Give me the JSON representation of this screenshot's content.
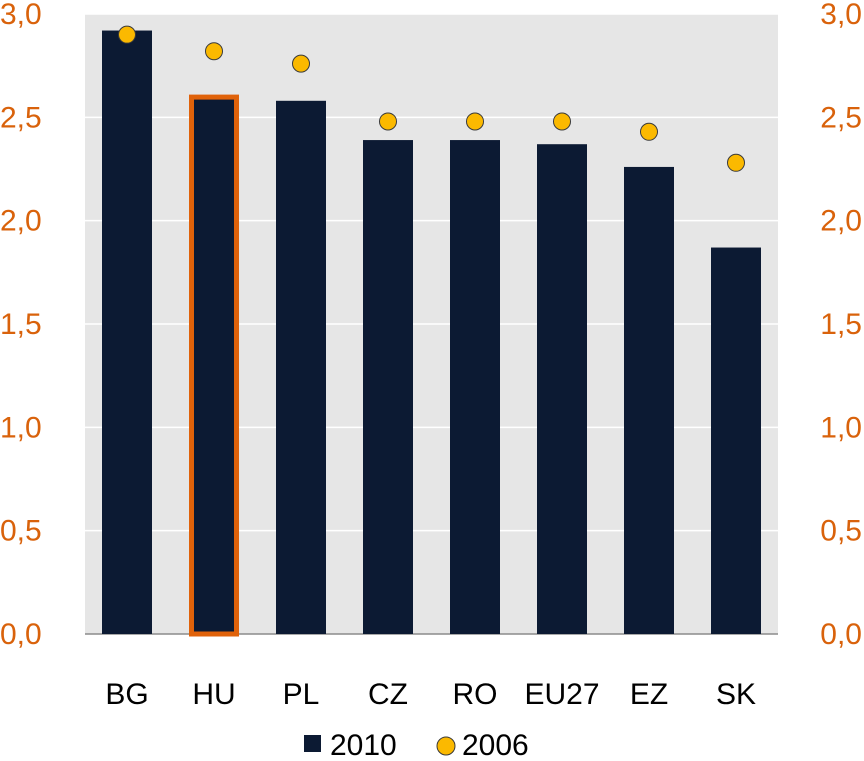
{
  "chart_data": {
    "type": "bar",
    "categories": [
      "BG",
      "HU",
      "PL",
      "CZ",
      "RO",
      "EU27",
      "EZ",
      "SK"
    ],
    "series": [
      {
        "name": "2010",
        "kind": "bar",
        "values": [
          2.92,
          2.61,
          2.58,
          2.39,
          2.39,
          2.37,
          2.26,
          1.87
        ]
      },
      {
        "name": "2006",
        "kind": "marker",
        "values": [
          2.9,
          2.82,
          2.76,
          2.48,
          2.48,
          2.48,
          2.43,
          2.28
        ]
      }
    ],
    "highlight_category": "HU",
    "ylim": [
      0,
      3.0
    ],
    "yticks": [
      "0,0",
      "0,5",
      "1,0",
      "1,5",
      "2,0",
      "2,5",
      "3,0"
    ],
    "ytick_values": [
      0,
      0.5,
      1.0,
      1.5,
      2.0,
      2.5,
      3.0
    ],
    "secondary_yaxis": true,
    "grid": true,
    "legend_position": "bottom",
    "colors": {
      "bar": "#0c1a33",
      "marker": "#fbb900",
      "marker_edge": "#3a3a3a",
      "highlight": "#e0620a",
      "axis_text": "#d9620b",
      "plot_bg": "#e6e6e6",
      "grid": "#ffffff"
    }
  }
}
